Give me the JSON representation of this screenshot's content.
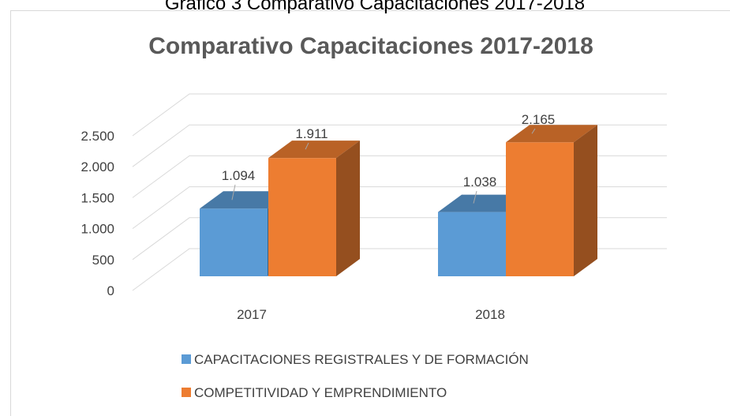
{
  "caption": "Gráfico 3 Comparativo Capacitaciones 2017-2018",
  "chart_data": {
    "type": "bar3d",
    "title": "Comparativo Capacitaciones 2017-2018",
    "categories": [
      "2017",
      "2018"
    ],
    "series": [
      {
        "name": "CAPACITACIONES REGISTRALES Y DE FORMACIÓN",
        "color": "#5b9bd5",
        "values": [
          1094,
          1038
        ],
        "value_labels": [
          "1.094",
          "1.038"
        ]
      },
      {
        "name": "COMPETITIVIDAD Y EMPRENDIMIENTO",
        "color": "#ed7d31",
        "values": [
          1911,
          2165
        ],
        "value_labels": [
          "1.911",
          "2.165"
        ]
      }
    ],
    "ylim": [
      0,
      2500
    ],
    "yticks": [
      0,
      500,
      {
        "value": 1000,
        "label": "1.000"
      },
      {
        "value": 1500,
        "label": "1.500"
      },
      {
        "value": 2000,
        "label": "2.000"
      },
      {
        "value": 2500,
        "label": "2.500"
      }
    ],
    "grid": true,
    "legend": "bottom"
  }
}
